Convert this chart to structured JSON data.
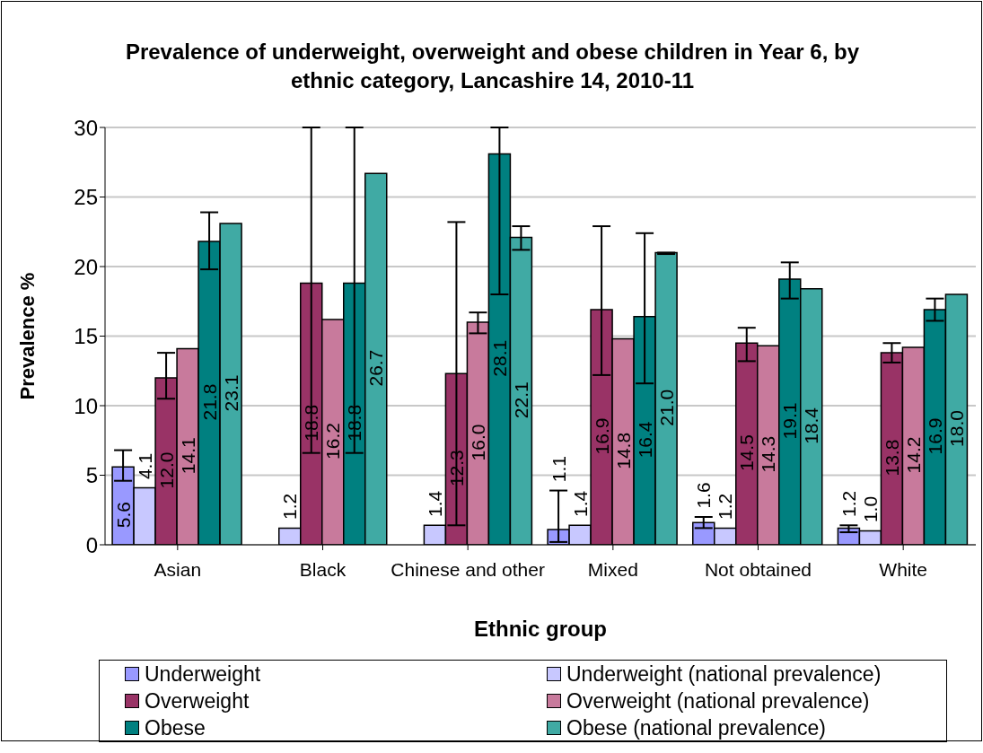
{
  "chart_data": {
    "type": "bar",
    "title": "Prevalence of underweight, overweight and obese children in Year 6, by ethnic category, Lancashire 14, 2010-11",
    "xlabel": "Ethnic group",
    "ylabel": "Prevalence %",
    "categories": [
      "Asian",
      "Black",
      "Chinese and other",
      "Mixed",
      "Not obtained",
      "White"
    ],
    "series": [
      {
        "name": "Underweight",
        "color": "#9999ff",
        "values": [
          5.6,
          null,
          null,
          1.1,
          1.6,
          1.2
        ],
        "errors": [
          [
            4.6,
            6.8
          ],
          null,
          null,
          [
            0.2,
            3.9
          ],
          [
            1.2,
            2.0
          ],
          [
            0.9,
            1.4
          ]
        ],
        "value_labels": [
          "5.6",
          null,
          null,
          "1.1",
          "1.6",
          "1.2"
        ]
      },
      {
        "name": "Underweight (national prevalence)",
        "color": "#c8c8ff",
        "values": [
          4.1,
          1.2,
          1.4,
          1.4,
          1.2,
          1.0
        ],
        "value_labels": [
          "4.1",
          "1.2",
          "1.4",
          "1.4",
          "1.2",
          "1.0"
        ]
      },
      {
        "name": "Overweight",
        "color": "#993366",
        "values": [
          12.0,
          18.8,
          12.3,
          16.9,
          14.5,
          13.8
        ],
        "errors": [
          [
            10.5,
            13.8
          ],
          [
            6.6,
            30
          ],
          [
            1.4,
            23.2
          ],
          [
            12.2,
            22.9
          ],
          [
            13.2,
            15.6
          ],
          [
            13.1,
            14.5
          ]
        ],
        "value_labels": [
          "12.0",
          "18.8",
          "12.3",
          "16.9",
          "14.5",
          "13.8"
        ]
      },
      {
        "name": "Overweight (national prevalence)",
        "color": "#c87a9c",
        "values": [
          14.1,
          16.2,
          16.0,
          14.8,
          14.3,
          14.2
        ],
        "errors": [
          null,
          null,
          [
            15.2,
            16.7
          ],
          null,
          null,
          null
        ],
        "value_labels": [
          "14.1",
          "16.2",
          "16.0",
          "14.8",
          "14.3",
          "14.2"
        ]
      },
      {
        "name": "Obese",
        "color": "#008080",
        "values": [
          21.8,
          18.8,
          28.1,
          16.4,
          19.1,
          16.9
        ],
        "errors": [
          [
            19.8,
            23.9
          ],
          [
            6.6,
            30
          ],
          [
            18.0,
            30
          ],
          [
            11.6,
            22.4
          ],
          [
            17.7,
            20.3
          ],
          [
            16.1,
            17.7
          ]
        ],
        "value_labels": [
          "21.8",
          "18.8",
          "28.1",
          "16.4",
          "19.1",
          "16.9"
        ]
      },
      {
        "name": "Obese (national prevalence)",
        "color": "#40aaa4",
        "values": [
          23.1,
          26.7,
          22.1,
          21.0,
          18.4,
          18.0
        ],
        "errors": [
          null,
          null,
          [
            21.2,
            22.9
          ],
          [
            20.9,
            21.0
          ],
          null,
          null
        ],
        "value_labels": [
          "23.1",
          "26.7",
          "22.1",
          "21.0",
          "18.4",
          "18.0"
        ]
      }
    ],
    "ylim": [
      0,
      30
    ],
    "yticks": [
      0,
      5,
      10,
      15,
      20,
      25,
      30
    ],
    "grid": "y",
    "legend": "bottom"
  }
}
